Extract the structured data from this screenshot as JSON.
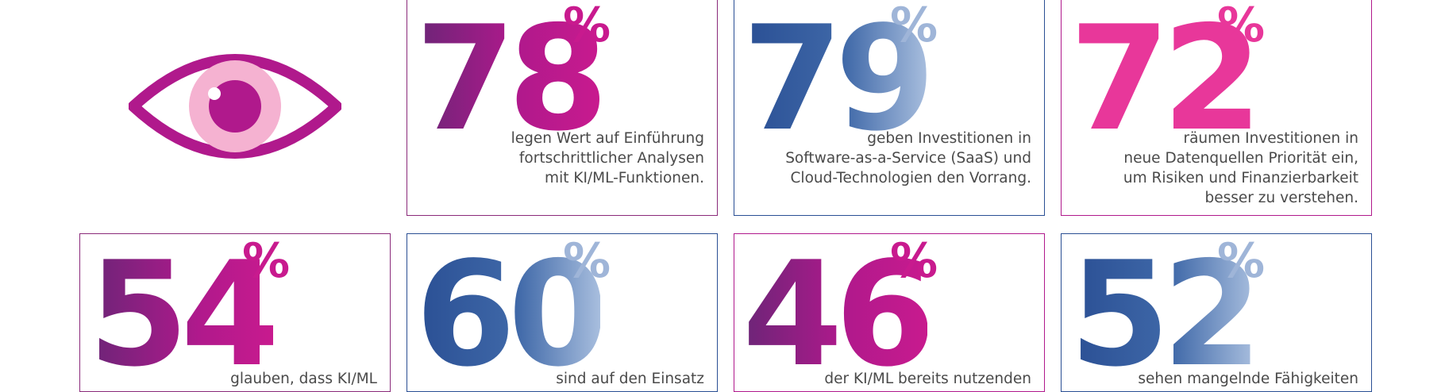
{
  "icon": "eye-icon",
  "percent_sign": "%",
  "colors": {
    "magenta": "#b0198c",
    "purple": "#6b2577",
    "pink": "#e8379a",
    "light_pink": "#f2a8cc",
    "blue_dark": "#2a4f94",
    "blue_light": "#a8bede"
  },
  "stats": [
    {
      "value": 78,
      "value_text": "78",
      "text": "legen Wert auf Einführung\nfortschrittlicher Analysen\nmit KI/ML-Funktionen."
    },
    {
      "value": 79,
      "value_text": "79",
      "text": "geben Investitionen in\nSoftware-as-a-Service (SaaS) und\nCloud-Technologien den Vorrang."
    },
    {
      "value": 72,
      "value_text": "72",
      "text": "räumen Investitionen in\nneue Datenquellen Priorität ein,\num Risiken und Finanzierbarkeit\nbesser zu verstehen."
    },
    {
      "value": 54,
      "value_text": "54",
      "text": "glauben, dass KI/ML"
    },
    {
      "value": 60,
      "value_text": "60",
      "text": "sind auf den Einsatz"
    },
    {
      "value": 46,
      "value_text": "46",
      "text": "der KI/ML bereits nutzenden"
    },
    {
      "value": 52,
      "value_text": "52",
      "text": "sehen mangelnde Fähigkeiten"
    }
  ]
}
